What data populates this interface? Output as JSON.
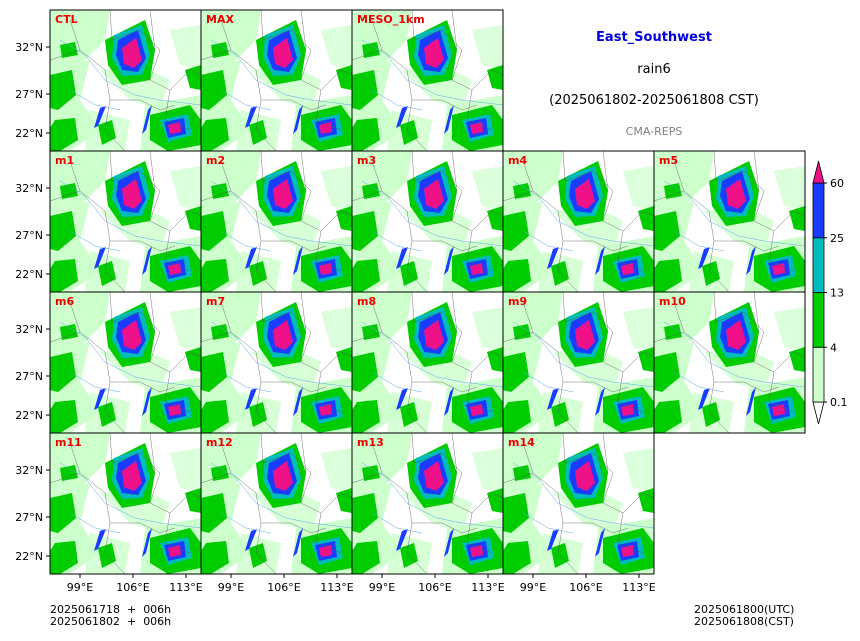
{
  "header": {
    "region": "East_Southwest",
    "variable": "rain6",
    "period": "(2025061802-2025061808 CST)",
    "system": "CMA-REPS",
    "region_color": "#0000dd",
    "system_color": "#808080"
  },
  "footer": {
    "left_line1": "2025061718  +  006h",
    "left_line2": "2025061802  +  006h",
    "right_line1": "2025061800(UTC)",
    "right_line2": "2025061808(CST)"
  },
  "colorbar": {
    "levels": [
      "0.1",
      "4",
      "13",
      "25",
      "60"
    ],
    "colors": [
      "#ffffff",
      "#ccffcc",
      "#00cc00",
      "#00bbbb",
      "#1a3cff",
      "#ee1188"
    ]
  },
  "chart_data": {
    "type": "heatmap",
    "xticks": [
      "99°E",
      "106°E",
      "113°E"
    ],
    "yticks": [
      "32°N",
      "27°N",
      "22°N"
    ],
    "panels": [
      {
        "label": "CTL"
      },
      {
        "label": "MAX"
      },
      {
        "label": "MESO_1km"
      },
      {
        "label": "m1"
      },
      {
        "label": "m2"
      },
      {
        "label": "m3"
      },
      {
        "label": "m4"
      },
      {
        "label": "m5"
      },
      {
        "label": "m6"
      },
      {
        "label": "m7"
      },
      {
        "label": "m8"
      },
      {
        "label": "m9"
      },
      {
        "label": "m10"
      },
      {
        "label": "m11"
      },
      {
        "label": "m12"
      },
      {
        "label": "m13"
      },
      {
        "label": "m14"
      }
    ],
    "label_color": "#ee0000"
  }
}
